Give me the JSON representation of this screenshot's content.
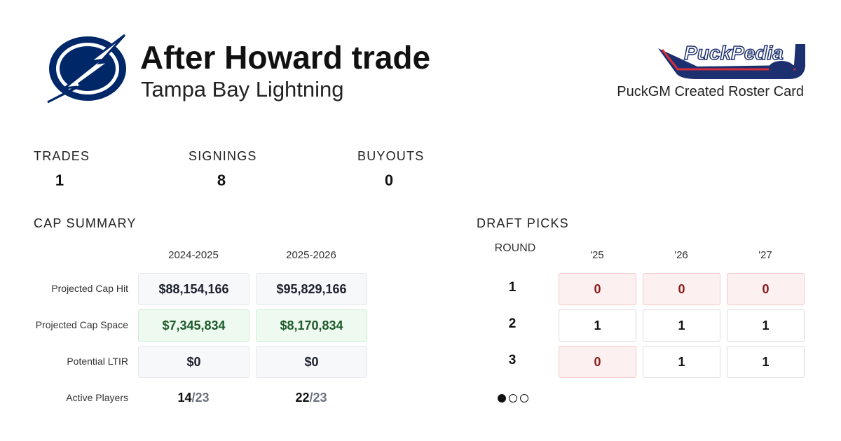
{
  "header": {
    "title": "After Howard trade",
    "team": "Tampa Bay Lightning",
    "brand_logo": "PuckPedia",
    "caption": "PuckGM Created Roster Card"
  },
  "stats": [
    {
      "label": "TRADES",
      "value": "1"
    },
    {
      "label": "SIGNINGS",
      "value": "8"
    },
    {
      "label": "BUYOUTS",
      "value": "0"
    }
  ],
  "cap_summary": {
    "title": "CAP SUMMARY",
    "columns": [
      "2024-2025",
      "2025-2026"
    ],
    "rows": [
      {
        "label": "Projected Cap Hit",
        "values": [
          "$88,154,166",
          "$95,829,166"
        ]
      },
      {
        "label": "Projected Cap Space",
        "values": [
          "$7,345,834",
          "$8,170,834"
        ]
      },
      {
        "label": "Potential LTIR",
        "values": [
          "$0",
          "$0"
        ]
      }
    ],
    "active_players": {
      "label": "Active Players",
      "values": [
        {
          "count": "14",
          "limit": "/23"
        },
        {
          "count": "22",
          "limit": "/23"
        }
      ]
    }
  },
  "draft_picks": {
    "title": "DRAFT PICKS",
    "round_header": "ROUND",
    "years": [
      "'25",
      "'26",
      "'27"
    ],
    "rounds": [
      {
        "round": "1",
        "picks": [
          "0",
          "0",
          "0"
        ]
      },
      {
        "round": "2",
        "picks": [
          "1",
          "1",
          "1"
        ]
      },
      {
        "round": "3",
        "picks": [
          "0",
          "1",
          "1"
        ]
      }
    ]
  }
}
